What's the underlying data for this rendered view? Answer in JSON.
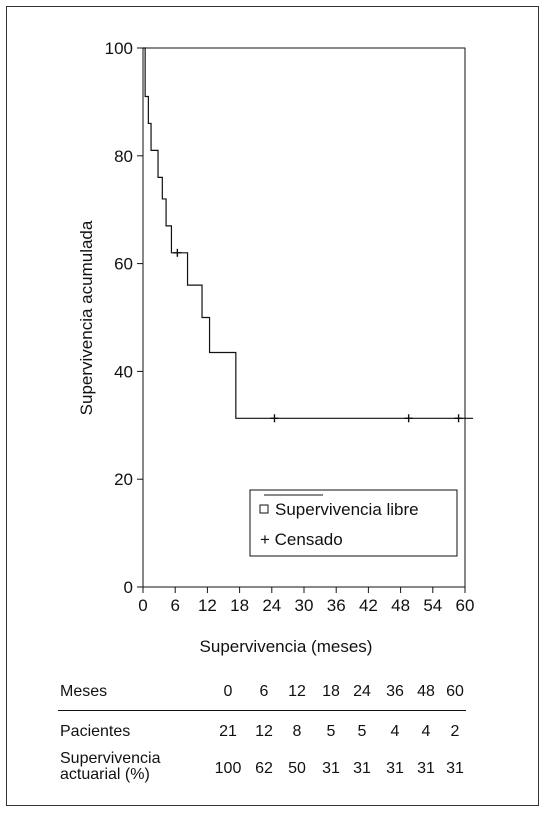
{
  "chart_data": {
    "type": "line",
    "xlabel": "Supervivencia (meses)",
    "ylabel": "Supervivencia acumulada",
    "xlim": [
      0,
      60
    ],
    "ylim": [
      0,
      100
    ],
    "x_ticks": [
      "0",
      "6",
      "12",
      "18",
      "24",
      "30",
      "36",
      "42",
      "48",
      "54",
      "60"
    ],
    "y_ticks": [
      "0",
      "20",
      "40",
      "60",
      "80",
      "100"
    ],
    "x_tick_values": [
      0,
      6,
      12,
      18,
      24,
      30,
      36,
      42,
      48,
      54,
      60
    ],
    "y_tick_values": [
      0,
      20,
      40,
      60,
      80,
      100
    ],
    "grid": false,
    "legend_position": "bottom-right",
    "series": [
      {
        "name": "Supervivencia libre",
        "steps": [
          {
            "x": 0,
            "y": 100
          },
          {
            "x": 0.4,
            "y": 91
          },
          {
            "x": 1.0,
            "y": 86
          },
          {
            "x": 1.5,
            "y": 81
          },
          {
            "x": 2.8,
            "y": 76
          },
          {
            "x": 3.6,
            "y": 72
          },
          {
            "x": 4.3,
            "y": 67
          },
          {
            "x": 5.3,
            "y": 62
          },
          {
            "x": 8.3,
            "y": 56
          },
          {
            "x": 11.0,
            "y": 50
          },
          {
            "x": 12.4,
            "y": 43.5
          },
          {
            "x": 17.3,
            "y": 31.3
          }
        ],
        "x_end": 61.5
      }
    ],
    "censored": {
      "name": "Censado",
      "points": [
        {
          "x": 6.4,
          "y": 62
        },
        {
          "x": 24.5,
          "y": 31.3
        },
        {
          "x": 49.5,
          "y": 31.3
        },
        {
          "x": 58.8,
          "y": 31.3
        }
      ]
    }
  },
  "legend": {
    "survival_label": "Supervivencia libre",
    "censored_label": "+ Censado"
  },
  "table": {
    "header_label": "Meses",
    "months": [
      "0",
      "6",
      "12",
      "18",
      "24",
      "36",
      "48",
      "60"
    ],
    "patients_label": "Pacientes",
    "patients": [
      "21",
      "12",
      "8",
      "5",
      "5",
      "4",
      "4",
      "2"
    ],
    "survival_label_line1": "Supervivencia",
    "survival_label_line2": "actuarial (%)",
    "survival": [
      "100",
      "62",
      "50",
      "31",
      "31",
      "31",
      "31",
      "31"
    ]
  }
}
